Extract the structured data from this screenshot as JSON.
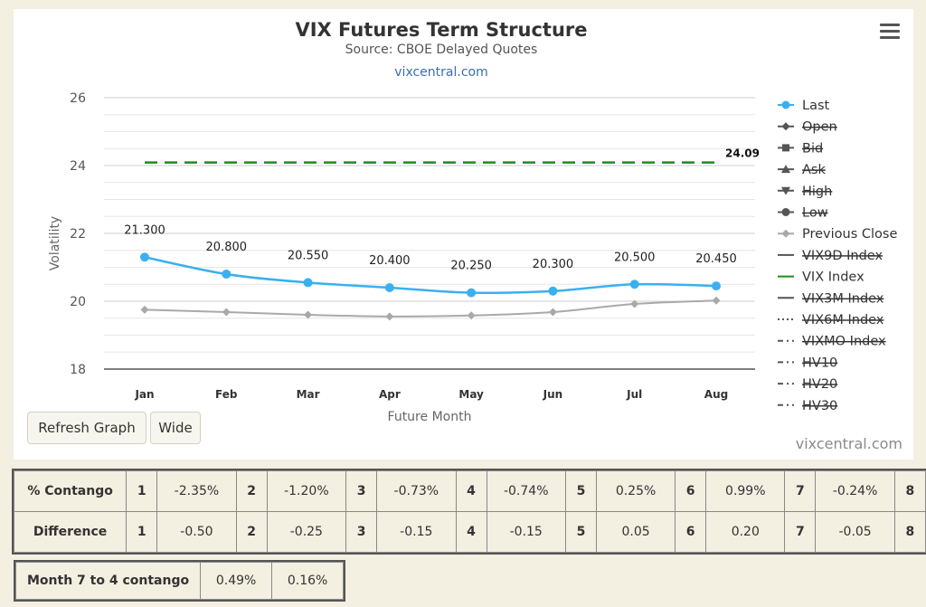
{
  "chart_data": {
    "type": "line",
    "title": "VIX Futures Term Structure",
    "subtitle": "Source: CBOE Delayed Quotes",
    "source_link": "vixcentral.com",
    "xlabel": "Future Month",
    "ylabel": "Volatility",
    "categories": [
      "Jan",
      "Feb",
      "Mar",
      "Apr",
      "May",
      "Jun",
      "Jul",
      "Aug"
    ],
    "ylim": [
      18,
      26
    ],
    "yticks": [
      18,
      20,
      22,
      24,
      26
    ],
    "grid": true,
    "legend_position": "right",
    "series": [
      {
        "name": "Last",
        "color": "#3ab0f0",
        "values": [
          21.3,
          20.8,
          20.55,
          20.4,
          20.25,
          20.3,
          20.5,
          20.45
        ],
        "labels": [
          "21.300",
          "20.800",
          "20.550",
          "20.400",
          "20.250",
          "20.300",
          "20.500",
          "20.450"
        ]
      },
      {
        "name": "Previous Close",
        "color": "#a9a9a9",
        "values": [
          19.75,
          19.68,
          19.6,
          19.55,
          19.58,
          19.68,
          19.92,
          20.02
        ]
      },
      {
        "name": "VIX Index",
        "color": "#1e8a1e",
        "values": [
          24.09,
          24.09,
          24.09,
          24.09,
          24.09,
          24.09,
          24.09,
          24.09
        ],
        "end_label": "24.09"
      }
    ],
    "legend": [
      {
        "name": "Last",
        "hidden": false,
        "symbol": "circle-line",
        "color": "#3ab0f0"
      },
      {
        "name": "Open",
        "hidden": true,
        "symbol": "diamond-line",
        "color": "#555555"
      },
      {
        "name": "Bid",
        "hidden": true,
        "symbol": "square-line",
        "color": "#555555"
      },
      {
        "name": "Ask",
        "hidden": true,
        "symbol": "triangle-line",
        "color": "#555555"
      },
      {
        "name": "High",
        "hidden": true,
        "symbol": "triangle-down-line",
        "color": "#555555"
      },
      {
        "name": "Low",
        "hidden": true,
        "symbol": "circle-line",
        "color": "#555555"
      },
      {
        "name": "Previous Close",
        "hidden": false,
        "symbol": "diamond-line",
        "color": "#a9a9a9"
      },
      {
        "name": "VIX9D Index",
        "hidden": true,
        "symbol": "line",
        "color": "#555555"
      },
      {
        "name": "VIX Index",
        "hidden": false,
        "symbol": "line",
        "color": "#1e8a1e"
      },
      {
        "name": "VIX3M Index",
        "hidden": true,
        "symbol": "line",
        "color": "#555555"
      },
      {
        "name": "VIX6M Index",
        "hidden": true,
        "symbol": "dotted",
        "color": "#555555"
      },
      {
        "name": "VIXMO Index",
        "hidden": true,
        "symbol": "dashdot",
        "color": "#555555"
      },
      {
        "name": "HV10",
        "hidden": true,
        "symbol": "dashdot",
        "color": "#555555"
      },
      {
        "name": "HV20",
        "hidden": true,
        "symbol": "dashdot",
        "color": "#555555"
      },
      {
        "name": "HV30",
        "hidden": true,
        "symbol": "dashdot",
        "color": "#555555"
      }
    ]
  },
  "buttons": {
    "refresh": "Refresh Graph",
    "wide": "Wide"
  },
  "credit": "vixcentral.com",
  "contango_table": {
    "rows": [
      {
        "header": "% Contango",
        "cells": [
          [
            "1",
            "-2.35%"
          ],
          [
            "2",
            "-1.20%"
          ],
          [
            "3",
            "-0.73%"
          ],
          [
            "4",
            "-0.74%"
          ],
          [
            "5",
            "0.25%"
          ],
          [
            "6",
            "0.99%"
          ],
          [
            "7",
            "-0.24%"
          ],
          [
            "8",
            ""
          ]
        ]
      },
      {
        "header": "Difference",
        "cells": [
          [
            "1",
            "-0.50"
          ],
          [
            "2",
            "-0.25"
          ],
          [
            "3",
            "-0.15"
          ],
          [
            "4",
            "-0.15"
          ],
          [
            "5",
            "0.05"
          ],
          [
            "6",
            "0.20"
          ],
          [
            "7",
            "-0.05"
          ],
          [
            "8",
            ""
          ]
        ]
      }
    ]
  },
  "month74": {
    "header": "Month 7 to 4 contango",
    "v1": "0.49%",
    "v2": "0.16%"
  }
}
